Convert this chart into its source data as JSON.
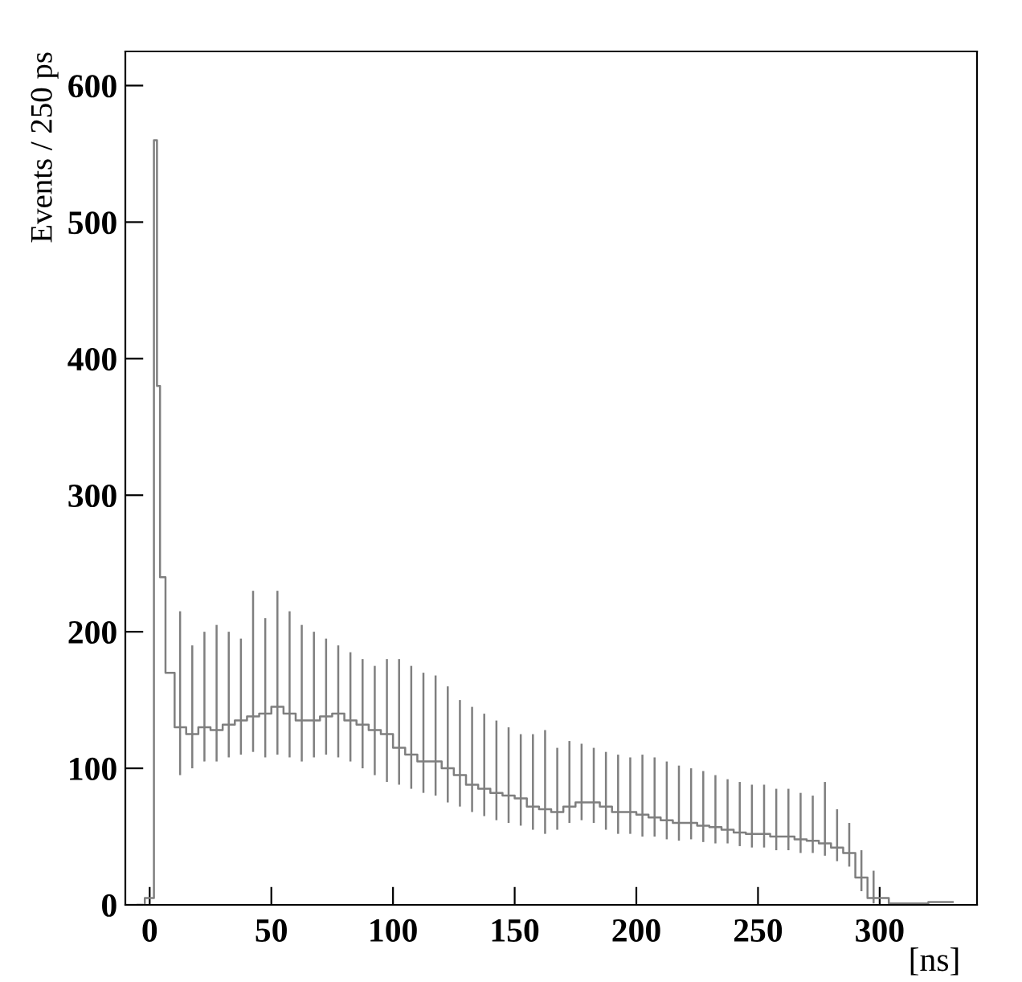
{
  "chart_data": {
    "type": "step",
    "xlabel": "[ns]",
    "ylabel": "Events / 250 ps",
    "color": "#7f7f7f",
    "x": [
      -5,
      1,
      2.5,
      3.5,
      5,
      8,
      12.5,
      17.5,
      22.5,
      27.5,
      32.5,
      37.5,
      42.5,
      47.5,
      52.5,
      57.5,
      62.5,
      67.5,
      72.5,
      77.5,
      82.5,
      87.5,
      92.5,
      97.5,
      102.5,
      107.5,
      112.5,
      117.5,
      122.5,
      127.5,
      132.5,
      137.5,
      142.5,
      147.5,
      152.5,
      157.5,
      162.5,
      167.5,
      172.5,
      177.5,
      182.5,
      187.5,
      192.5,
      197.5,
      202.5,
      207.5,
      212.5,
      217.5,
      222.5,
      227.5,
      232.5,
      237.5,
      242.5,
      247.5,
      252.5,
      257.5,
      262.5,
      267.5,
      272.5,
      277.5,
      282.5,
      287.5,
      292.5,
      297.5,
      310,
      330
    ],
    "values": [
      0,
      5,
      560,
      380,
      240,
      170,
      130,
      125,
      130,
      128,
      132,
      135,
      138,
      140,
      145,
      140,
      135,
      135,
      138,
      140,
      135,
      132,
      128,
      125,
      115,
      110,
      105,
      105,
      100,
      95,
      88,
      85,
      82,
      80,
      78,
      72,
      70,
      68,
      72,
      75,
      75,
      72,
      68,
      68,
      66,
      64,
      62,
      60,
      60,
      58,
      57,
      55,
      53,
      52,
      52,
      50,
      50,
      48,
      47,
      45,
      42,
      38,
      20,
      5,
      1,
      2
    ],
    "errors": [
      null,
      null,
      null,
      null,
      null,
      null,
      [
        95,
        215
      ],
      [
        100,
        190
      ],
      [
        105,
        200
      ],
      [
        105,
        205
      ],
      [
        108,
        200
      ],
      [
        110,
        195
      ],
      [
        112,
        230
      ],
      [
        108,
        210
      ],
      [
        110,
        230
      ],
      [
        108,
        215
      ],
      [
        105,
        205
      ],
      [
        108,
        200
      ],
      [
        110,
        195
      ],
      [
        108,
        190
      ],
      [
        105,
        185
      ],
      [
        100,
        180
      ],
      [
        95,
        175
      ],
      [
        90,
        180
      ],
      [
        88,
        180
      ],
      [
        85,
        175
      ],
      [
        82,
        170
      ],
      [
        80,
        168
      ],
      [
        75,
        160
      ],
      [
        72,
        150
      ],
      [
        68,
        145
      ],
      [
        65,
        140
      ],
      [
        62,
        135
      ],
      [
        60,
        130
      ],
      [
        58,
        125
      ],
      [
        55,
        125
      ],
      [
        52,
        128
      ],
      [
        55,
        115
      ],
      [
        60,
        120
      ],
      [
        62,
        118
      ],
      [
        60,
        115
      ],
      [
        55,
        112
      ],
      [
        52,
        110
      ],
      [
        52,
        108
      ],
      [
        50,
        110
      ],
      [
        50,
        108
      ],
      [
        48,
        105
      ],
      [
        47,
        102
      ],
      [
        48,
        100
      ],
      [
        46,
        98
      ],
      [
        45,
        95
      ],
      [
        45,
        92
      ],
      [
        43,
        90
      ],
      [
        42,
        88
      ],
      [
        42,
        88
      ],
      [
        40,
        85
      ],
      [
        40,
        85
      ],
      [
        38,
        82
      ],
      [
        38,
        80
      ],
      [
        36,
        90
      ],
      [
        32,
        70
      ],
      [
        28,
        60
      ],
      [
        10,
        40
      ],
      [
        1,
        25
      ],
      null,
      null
    ],
    "xlim": [
      -10,
      340
    ],
    "ylim": [
      0,
      625
    ],
    "xticks": [
      0,
      50,
      100,
      150,
      200,
      250,
      300
    ],
    "yticks": [
      0,
      100,
      200,
      300,
      400,
      500,
      600
    ],
    "grid": false,
    "legend": false
  }
}
